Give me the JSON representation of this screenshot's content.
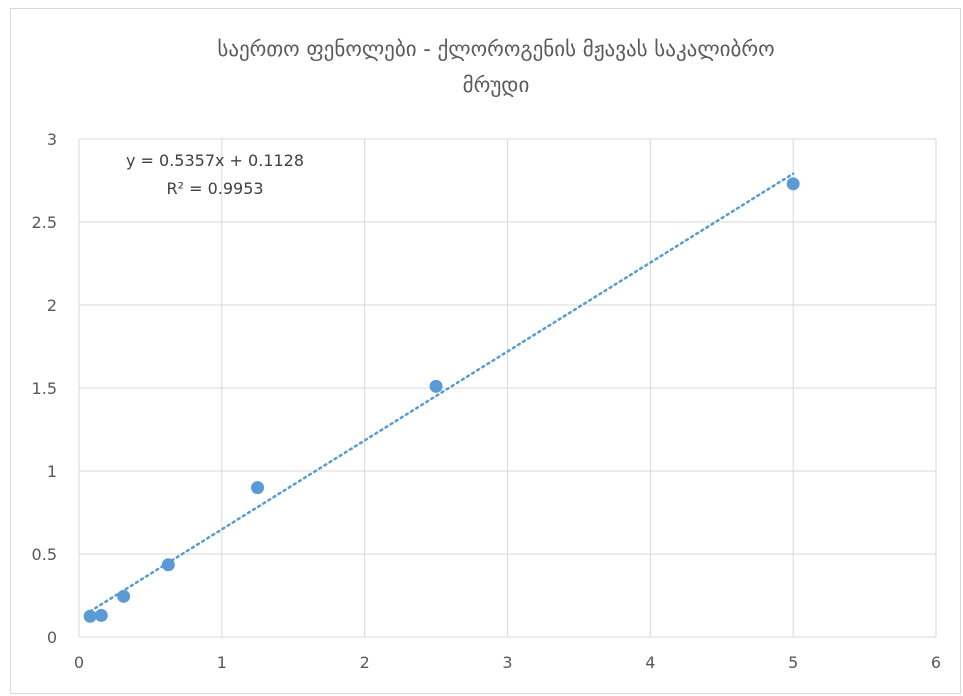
{
  "chart_data": {
    "type": "scatter",
    "title_lines": [
      "საერთო ფენოლები - ქლოროგენის მჟავას საკალიბრო",
      "მრუდი"
    ],
    "xlim": [
      0,
      6
    ],
    "ylim": [
      0,
      3
    ],
    "x_ticks": [
      0,
      1,
      2,
      3,
      4,
      5,
      6
    ],
    "y_ticks": [
      0,
      0.5,
      1,
      1.5,
      2,
      2.5,
      3
    ],
    "x_tick_labels": [
      "0",
      "1",
      "2",
      "3",
      "4",
      "5",
      "6"
    ],
    "y_tick_labels": [
      "0",
      "0.5",
      "1",
      "1.5",
      "2",
      "2.5",
      "3"
    ],
    "grid": true,
    "series": [
      {
        "x": [
          0.078,
          0.156,
          0.3125,
          0.625,
          1.25,
          2.5,
          5
        ],
        "y": [
          0.125,
          0.13,
          0.245,
          0.435,
          0.9,
          1.51,
          2.73
        ],
        "color": "#5b9bd5"
      }
    ],
    "trendline": {
      "type": "linear",
      "slope": 0.5357,
      "intercept": 0.1128,
      "x_range": [
        0.078,
        5
      ],
      "style": "dotted",
      "color": "#5b9bd5",
      "equation_text": "y = 0.5357x + 0.1128",
      "r2_text": "R² = 0.9953"
    },
    "colors": {
      "grid": "#d9d9d9",
      "text": "#595959"
    }
  }
}
